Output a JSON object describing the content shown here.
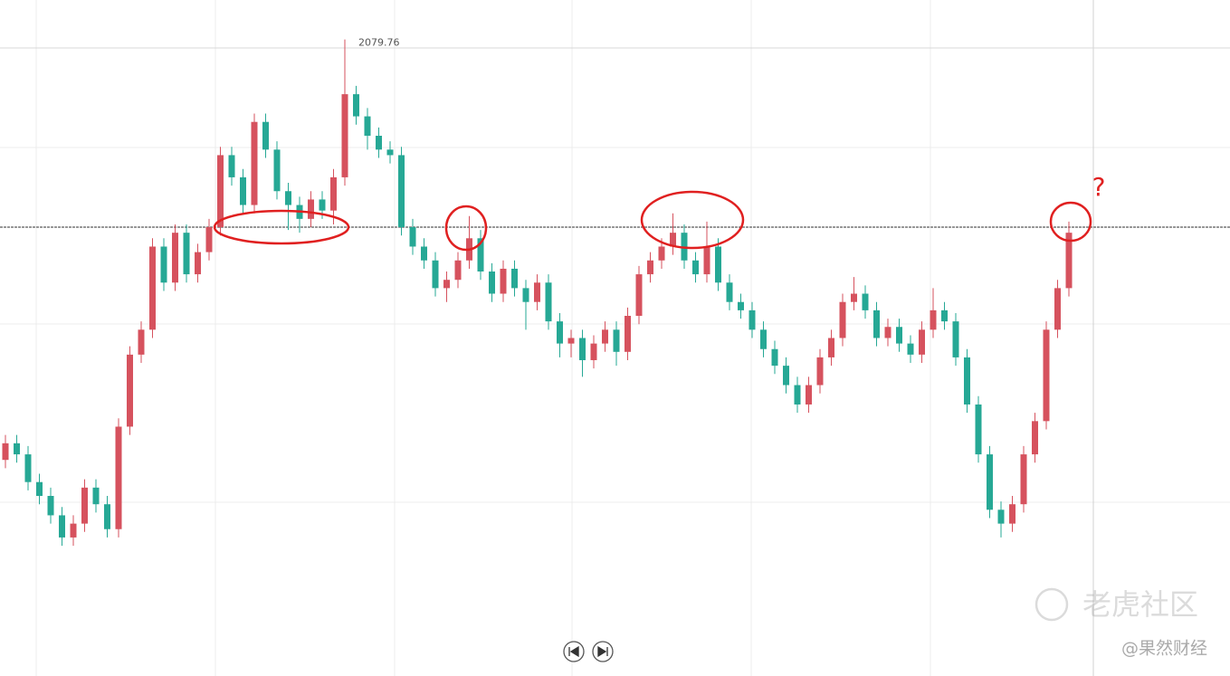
{
  "chart_data": {
    "type": "candlestick",
    "open": [
      1928,
      1934,
      1930,
      1920,
      1915,
      1908,
      1900,
      1905,
      1918,
      1912,
      1903,
      1940,
      1966,
      1975,
      2005,
      1992,
      2010,
      1995,
      2003,
      2012,
      2038,
      2030,
      2020,
      2050,
      2040,
      2025,
      2020,
      2015,
      2022,
      2018,
      2030,
      2060,
      2052,
      2045,
      2040,
      2038,
      2012,
      2005,
      2000,
      1990,
      1993,
      2000,
      2008,
      1996,
      1988,
      1997,
      1990,
      1985,
      1992,
      1978,
      1970,
      1972,
      1964,
      1970,
      1975,
      1967,
      1980,
      1995,
      2000,
      2005,
      2010,
      2000,
      1995,
      2005,
      1992,
      1985,
      1982,
      1975,
      1968,
      1962,
      1955,
      1948,
      1955,
      1965,
      1972,
      1985,
      1988,
      1982,
      1972,
      1976,
      1970,
      1966,
      1975,
      1982,
      1978,
      1965,
      1948,
      1930,
      1910,
      1905,
      1912,
      1930,
      1942,
      1975,
      1990
    ],
    "high": [
      1937,
      1937,
      1933,
      1923,
      1918,
      1911,
      1908,
      1921,
      1921,
      1915,
      1943,
      1969,
      1978,
      2008,
      2008,
      2013,
      2013,
      2006,
      2015,
      2041,
      2041,
      2033,
      2053,
      2053,
      2043,
      2028,
      2023,
      2025,
      2025,
      2033,
      2079.76,
      2063,
      2055,
      2048,
      2043,
      2041,
      2015,
      2008,
      2003,
      1996,
      2003,
      2016,
      2011,
      1999,
      2000,
      2000,
      1993,
      1995,
      1995,
      1981,
      1975,
      1975,
      1973,
      1978,
      1978,
      1983,
      1998,
      2003,
      2008,
      2017,
      2013,
      2003,
      2014,
      2008,
      1995,
      1988,
      1985,
      1978,
      1971,
      1965,
      1958,
      1958,
      1968,
      1975,
      1988,
      1994,
      1991,
      1985,
      1979,
      1979,
      1973,
      1978,
      1990,
      1985,
      1981,
      1968,
      1951,
      1933,
      1913,
      1915,
      1933,
      1945,
      1978,
      1993,
      2014
    ],
    "low": [
      1925,
      1927,
      1917,
      1912,
      1905,
      1897,
      1897,
      1902,
      1909,
      1900,
      1900,
      1937,
      1963,
      1972,
      1989,
      1989,
      1992,
      1992,
      2000,
      2009,
      2027,
      2017,
      2017,
      2037,
      2022,
      2011,
      2010,
      2012,
      2015,
      2013,
      2027,
      2049,
      2040,
      2037,
      2035,
      2009,
      2002,
      1997,
      1987,
      1985,
      1990,
      1997,
      1993,
      1985,
      1985,
      1987,
      1975,
      1982,
      1975,
      1965,
      1965,
      1958,
      1961,
      1967,
      1962,
      1964,
      1977,
      1992,
      1997,
      2002,
      1997,
      1992,
      1992,
      1989,
      1982,
      1979,
      1972,
      1965,
      1959,
      1952,
      1945,
      1945,
      1952,
      1962,
      1969,
      1982,
      1979,
      1969,
      1969,
      1967,
      1963,
      1963,
      1972,
      1975,
      1962,
      1945,
      1927,
      1907,
      1900,
      1902,
      1909,
      1927,
      1939,
      1972,
      1987
    ],
    "close": [
      1934,
      1930,
      1920,
      1915,
      1908,
      1900,
      1905,
      1918,
      1912,
      1903,
      1940,
      1966,
      1975,
      2005,
      1992,
      2010,
      1995,
      2003,
      2012,
      2038,
      2030,
      2020,
      2050,
      2040,
      2025,
      2020,
      2015,
      2022,
      2018,
      2030,
      2060,
      2052,
      2045,
      2040,
      2038,
      2012,
      2005,
      2000,
      1990,
      1993,
      2000,
      2008,
      1996,
      1988,
      1997,
      1990,
      1985,
      1992,
      1978,
      1970,
      1972,
      1964,
      1970,
      1975,
      1967,
      1980,
      1995,
      2000,
      2005,
      2010,
      2000,
      1995,
      2005,
      1992,
      1985,
      1982,
      1975,
      1968,
      1962,
      1955,
      1948,
      1955,
      1965,
      1972,
      1985,
      1988,
      1982,
      1972,
      1976,
      1970,
      1966,
      1975,
      1982,
      1978,
      1965,
      1948,
      1930,
      1910,
      1905,
      1912,
      1930,
      1942,
      1975,
      1990,
      2010
    ],
    "ylim": [
      1850,
      2094
    ],
    "up_color": "#d6525e",
    "down_color": "#26a895",
    "hline": 2012,
    "annotation": "?",
    "watermark": "老虎社区",
    "credit": "@果然财经"
  }
}
